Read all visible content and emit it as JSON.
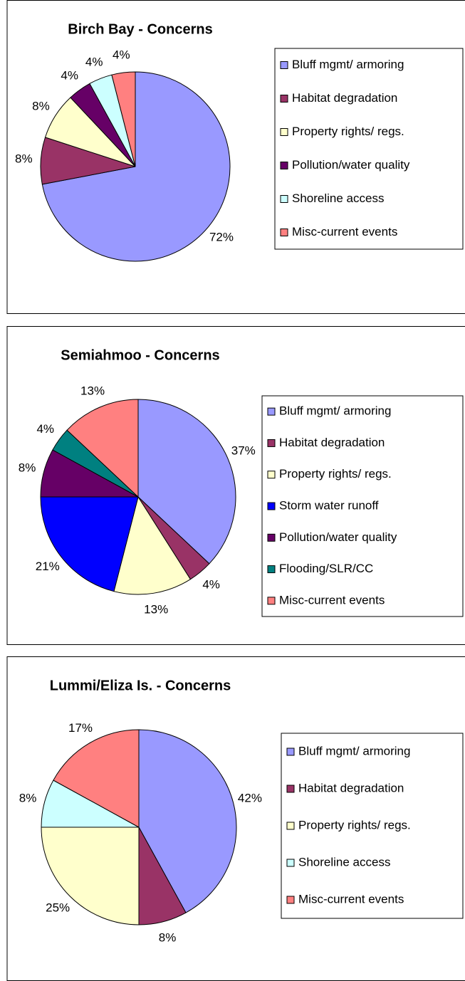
{
  "chart_data": [
    {
      "type": "pie",
      "title": "Birch Bay - Concerns",
      "categories": [
        "Bluff mgmt/ armoring",
        "Habitat degradation",
        "Property rights/ regs.",
        "Pollution/water quality",
        "Shoreline access",
        "Misc-current events"
      ],
      "values": [
        72,
        8,
        8,
        4,
        4,
        4
      ],
      "value_labels": [
        "72%",
        "8%",
        "8%",
        "4%",
        "4%",
        "4%"
      ],
      "colors": [
        "#9999ff",
        "#993366",
        "#ffffcc",
        "#660066",
        "#ccffff",
        "#ff8080"
      ]
    },
    {
      "type": "pie",
      "title": "Semiahmoo - Concerns",
      "categories": [
        "Bluff mgmt/ armoring",
        "Habitat degradation",
        "Property rights/ regs.",
        "Storm water runoff",
        "Pollution/water quality",
        "Flooding/SLR/CC",
        "Misc-current events"
      ],
      "values": [
        37,
        4,
        13,
        21,
        8,
        4,
        13
      ],
      "value_labels": [
        "37%",
        "4%",
        "13%",
        "21%",
        "8%",
        "4%",
        "13%"
      ],
      "colors": [
        "#9999ff",
        "#993366",
        "#ffffcc",
        "#0000ff",
        "#660066",
        "#008080",
        "#ff8080"
      ]
    },
    {
      "type": "pie",
      "title": "Lummi/Eliza Is. - Concerns",
      "categories": [
        "Bluff mgmt/ armoring",
        "Habitat degradation",
        "Property rights/ regs.",
        "Shoreline access",
        "Misc-current events"
      ],
      "values": [
        42,
        8,
        25,
        8,
        17
      ],
      "value_labels": [
        "42%",
        "8%",
        "25%",
        "8%",
        "17%"
      ],
      "colors": [
        "#9999ff",
        "#993366",
        "#ffffcc",
        "#ccffff",
        "#ff8080"
      ]
    }
  ]
}
